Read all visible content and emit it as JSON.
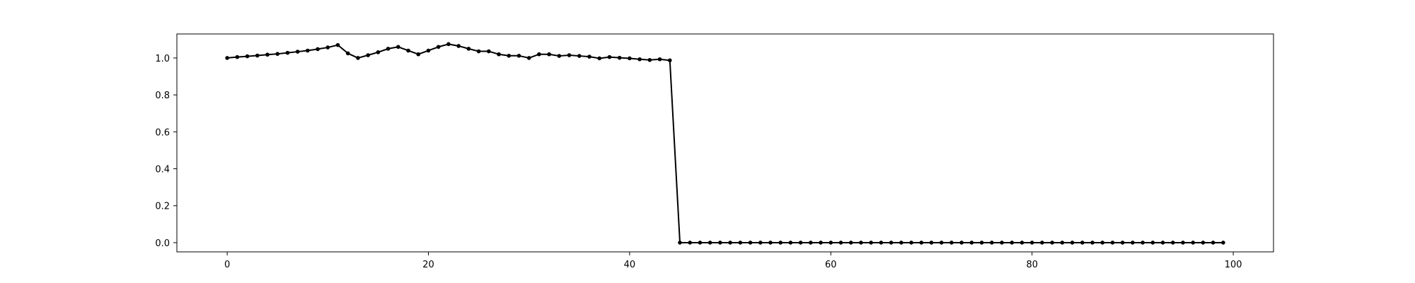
{
  "chart_data": {
    "type": "line",
    "title": "",
    "xlabel": "",
    "ylabel": "",
    "xlim": [
      -5,
      104
    ],
    "ylim": [
      -0.05,
      1.13
    ],
    "grid": false,
    "legend": "none",
    "x_ticks": [
      0,
      20,
      40,
      60,
      80,
      100
    ],
    "x_tick_labels": [
      "0",
      "20",
      "40",
      "60",
      "80",
      "100"
    ],
    "y_ticks": [
      0.0,
      0.2,
      0.4,
      0.6,
      0.8,
      1.0
    ],
    "y_tick_labels": [
      "0.0",
      "0.2",
      "0.4",
      "0.6",
      "0.8",
      "1.0"
    ],
    "line_color": "#000000",
    "marker": "dot",
    "series": [
      {
        "x": [
          0,
          1,
          2,
          3,
          4,
          5,
          6,
          7,
          8,
          9,
          10,
          11,
          12,
          13,
          14,
          15,
          16,
          17,
          18,
          19,
          20,
          21,
          22,
          23,
          24,
          25,
          26,
          27,
          28,
          29,
          30,
          31,
          32,
          33,
          34,
          35,
          36,
          37,
          38,
          39,
          40,
          41,
          42,
          43,
          44,
          45,
          46,
          47,
          48,
          49,
          50,
          51,
          52,
          53,
          54,
          55,
          56,
          57,
          58,
          59,
          60,
          61,
          62,
          63,
          64,
          65,
          66,
          67,
          68,
          69,
          70,
          71,
          72,
          73,
          74,
          75,
          76,
          77,
          78,
          79,
          80,
          81,
          82,
          83,
          84,
          85,
          86,
          87,
          88,
          89,
          90,
          91,
          92,
          93,
          94,
          95,
          96,
          97,
          98,
          99
        ],
        "values": [
          1.0,
          1.005,
          1.009,
          1.013,
          1.018,
          1.022,
          1.028,
          1.034,
          1.04,
          1.048,
          1.057,
          1.07,
          1.025,
          1.0,
          1.015,
          1.031,
          1.05,
          1.06,
          1.04,
          1.02,
          1.04,
          1.06,
          1.075,
          1.065,
          1.05,
          1.036,
          1.036,
          1.02,
          1.012,
          1.012,
          1.0,
          1.02,
          1.02,
          1.011,
          1.015,
          1.011,
          1.007,
          0.998,
          1.005,
          1.001,
          0.998,
          0.993,
          0.989,
          0.993,
          0.987,
          0.0,
          0.0,
          0.0,
          0.0,
          0.0,
          0.0,
          0.0,
          0.0,
          0.0,
          0.0,
          0.0,
          0.0,
          0.0,
          0.0,
          0.0,
          0.0,
          0.0,
          0.0,
          0.0,
          0.0,
          0.0,
          0.0,
          0.0,
          0.0,
          0.0,
          0.0,
          0.0,
          0.0,
          0.0,
          0.0,
          0.0,
          0.0,
          0.0,
          0.0,
          0.0,
          0.0,
          0.0,
          0.0,
          0.0,
          0.0,
          0.0,
          0.0,
          0.0,
          0.0,
          0.0,
          0.0,
          0.0,
          0.0,
          0.0,
          0.0,
          0.0,
          0.0,
          0.0,
          0.0,
          0.0
        ]
      }
    ]
  }
}
